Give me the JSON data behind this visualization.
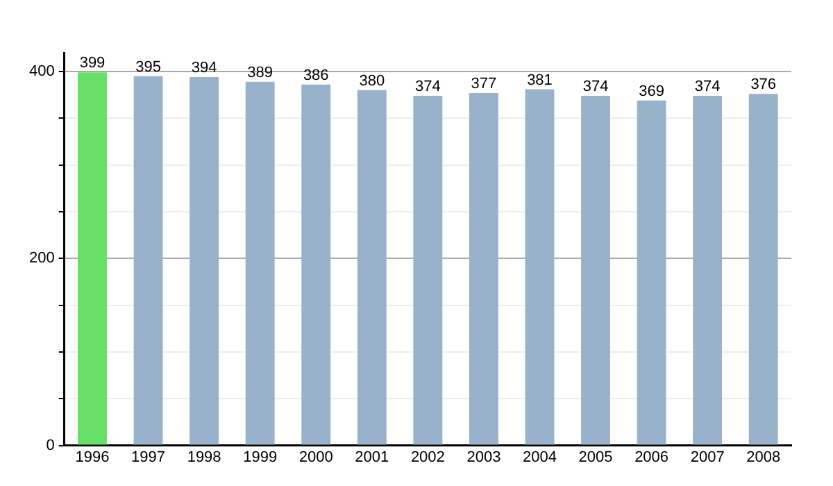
{
  "chart_data": {
    "type": "bar",
    "categories": [
      "1996",
      "1997",
      "1998",
      "1999",
      "2000",
      "2001",
      "2002",
      "2003",
      "2004",
      "2005",
      "2006",
      "2007",
      "2008"
    ],
    "values": [
      399,
      395,
      394,
      389,
      386,
      380,
      374,
      377,
      381,
      374,
      369,
      374,
      376
    ],
    "colors": [
      "#66e066",
      "#98b2cc",
      "#98b2cc",
      "#98b2cc",
      "#98b2cc",
      "#98b2cc",
      "#98b2cc",
      "#98b2cc",
      "#98b2cc",
      "#98b2cc",
      "#98b2cc",
      "#98b2cc",
      "#98b2cc"
    ],
    "ylim": [
      0,
      420
    ],
    "yticks": [
      0,
      {
        "value": 50,
        "label": null
      },
      {
        "value": 100,
        "label": null
      },
      {
        "value": 150,
        "label": null
      },
      200,
      {
        "value": 250,
        "label": null
      },
      {
        "value": 300,
        "label": null
      },
      {
        "value": 350,
        "label": null
      },
      400
    ],
    "grid": "y",
    "data_labels": true,
    "legend": false
  }
}
